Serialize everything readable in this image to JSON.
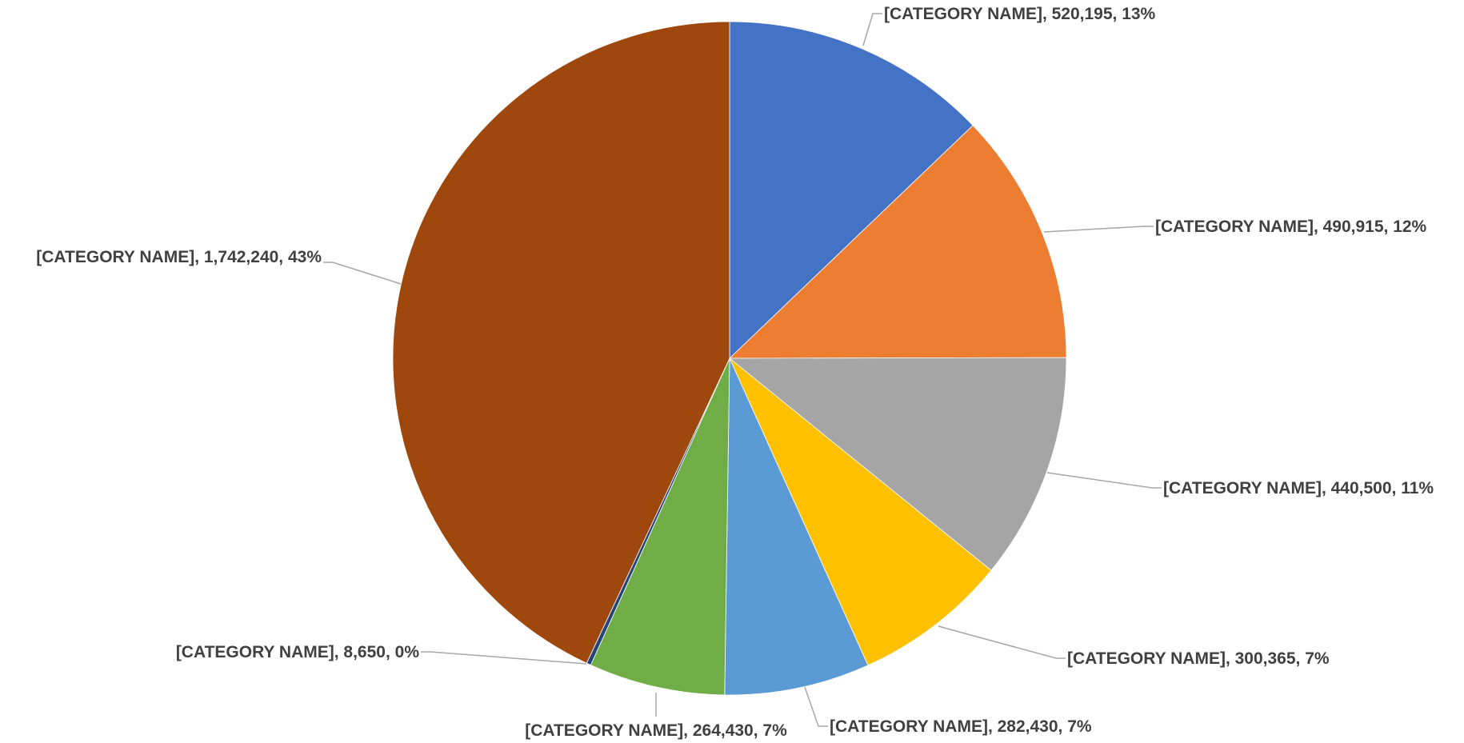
{
  "chart_data": {
    "type": "pie",
    "title": "",
    "label_format": "{name}, {value}, {percent}",
    "slices": [
      {
        "name": "[CATEGORY NAME]",
        "value": 520195,
        "value_label": "520,195",
        "percent_label": "13%",
        "color": "#4472c4"
      },
      {
        "name": "[CATEGORY NAME]",
        "value": 490915,
        "value_label": "490,915",
        "percent_label": "12%",
        "color": "#ed7d31"
      },
      {
        "name": "[CATEGORY NAME]",
        "value": 440500,
        "value_label": "440,500",
        "percent_label": "11%",
        "color": "#a5a5a5"
      },
      {
        "name": "[CATEGORY NAME]",
        "value": 300365,
        "value_label": "300,365",
        "percent_label": "7%",
        "color": "#ffc000"
      },
      {
        "name": "[CATEGORY NAME]",
        "value": 282430,
        "value_label": "282,430",
        "percent_label": "7%",
        "color": "#5b9bd5"
      },
      {
        "name": "[CATEGORY NAME]",
        "value": 264430,
        "value_label": "264,430",
        "percent_label": "7%",
        "color": "#70ad47"
      },
      {
        "name": "[CATEGORY NAME]",
        "value": 8650,
        "value_label": "8,650",
        "percent_label": "0%",
        "color": "#264478"
      },
      {
        "name": "[CATEGORY NAME]",
        "value": 1742240,
        "value_label": "1,742,240",
        "percent_label": "43%",
        "color": "#9e480e"
      }
    ],
    "start_angle_deg": 0,
    "direction": "clockwise",
    "legend": "none",
    "data_labels": "outside-with-leader-lines"
  }
}
